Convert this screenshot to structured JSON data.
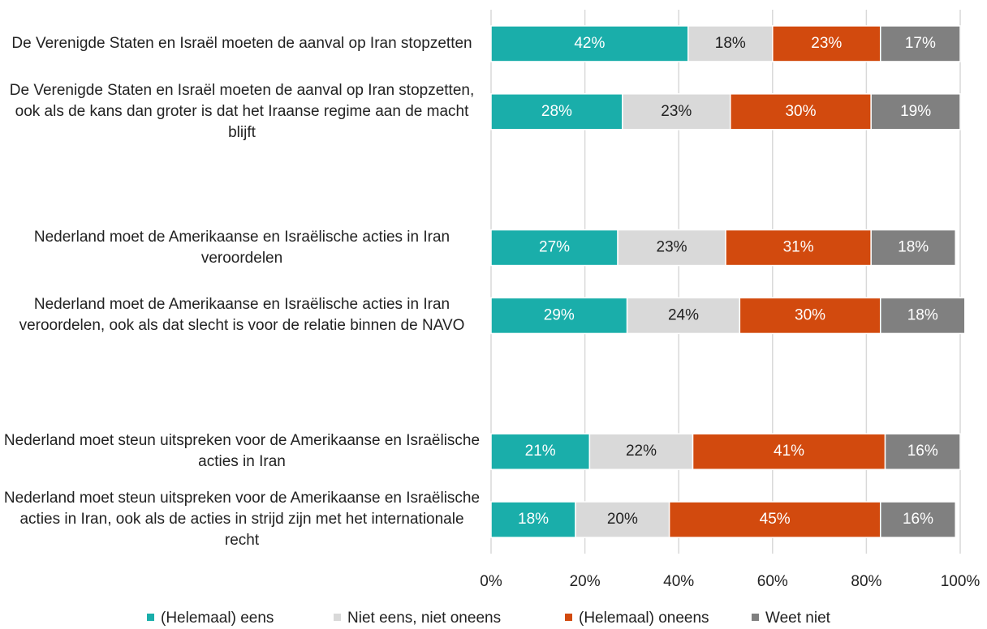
{
  "chart_data": {
    "type": "stacked_barh",
    "categories": [
      "De Verenigde Staten en Israël moeten de aanval op Iran stopzetten",
      "De Verenigde Staten en Israël moeten de aanval op Iran stopzetten, ook als de kans dan groter is dat het Iraanse regime aan de macht blijft",
      null,
      "Nederland moet de Amerikaanse en Israëlische acties in Iran veroordelen",
      "Nederland moet de Amerikaanse en Israëlische acties in Iran veroordelen, ook als dat slecht is voor de relatie binnen de NAVO",
      null,
      "Nederland moet steun uitspreken voor de Amerikaanse en Israëlische acties in Iran",
      "Nederland moet steun uitspreken voor de Amerikaanse en Israëlische acties in Iran, ook als de acties in strijd zijn met het internationale recht"
    ],
    "series": [
      {
        "name": "(Helemaal) eens",
        "color": "#1aaeaa",
        "values": [
          42,
          28,
          null,
          27,
          29,
          null,
          21,
          18
        ],
        "value_labels": [
          "42%",
          "28%",
          null,
          "27%",
          "29%",
          null,
          "21%",
          "18%"
        ]
      },
      {
        "name": "Niet eens, niet oneens",
        "color": "#d9d9d9",
        "values": [
          18,
          23,
          null,
          23,
          24,
          null,
          22,
          20
        ],
        "value_labels": [
          "18%",
          "23%",
          null,
          "23%",
          "24%",
          null,
          "22%",
          "20%"
        ]
      },
      {
        "name": "(Helemaal) oneens",
        "color": "#d24a0e",
        "values": [
          23,
          30,
          null,
          31,
          30,
          null,
          41,
          45
        ],
        "value_labels": [
          "23%",
          "30%",
          null,
          "31%",
          "30%",
          null,
          "41%",
          "45%"
        ]
      },
      {
        "name": "Weet niet",
        "color": "#808080",
        "values": [
          17,
          19,
          null,
          18,
          18,
          null,
          16,
          16
        ],
        "value_labels": [
          "17%",
          "19%",
          null,
          "18%",
          "18%",
          null,
          "16%",
          "16%"
        ]
      }
    ],
    "xlim": [
      0,
      100
    ],
    "xticks": [
      {
        "value": 0,
        "label": "0%"
      },
      {
        "value": 20,
        "label": "20%"
      },
      {
        "value": 40,
        "label": "40%"
      },
      {
        "value": 60,
        "label": "60%"
      },
      {
        "value": 80,
        "label": "80%"
      },
      {
        "value": 100,
        "label": "100%"
      }
    ],
    "grid": true,
    "legend": "bottom"
  }
}
